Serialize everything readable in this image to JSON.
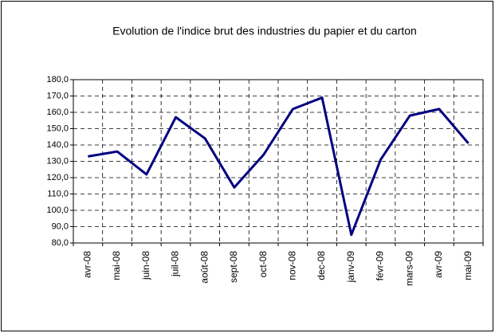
{
  "chart_data": {
    "type": "line",
    "title": "Evolution de l'indice brut des industries du papier et du carton",
    "categories": [
      "avr-08",
      "mai-08",
      "juin-08",
      "juil-08",
      "août-08",
      "sept-08",
      "oct-08",
      "nov-08",
      "dec-08",
      "janv-09",
      "févr-09",
      "mars-09",
      "avr-09",
      "mai-09"
    ],
    "series": [
      {
        "name": "Indice brut",
        "color": "#000080",
        "values": [
          133,
          136,
          122,
          157,
          144,
          114,
          134,
          162,
          169,
          85,
          131,
          158,
          162,
          141
        ]
      }
    ],
    "ylim": [
      80,
      180
    ],
    "yticks": [
      {
        "value": 80,
        "label": "80,0"
      },
      {
        "value": 90,
        "label": "90,0"
      },
      {
        "value": 100,
        "label": "100,0"
      },
      {
        "value": 110,
        "label": "110,0"
      },
      {
        "value": 120,
        "label": "120,0"
      },
      {
        "value": 130,
        "label": "130,0"
      },
      {
        "value": 140,
        "label": "140,0"
      },
      {
        "value": 150,
        "label": "150,0"
      },
      {
        "value": 160,
        "label": "160,0"
      },
      {
        "value": 170,
        "label": "170,0"
      },
      {
        "value": 180,
        "label": "180,0"
      }
    ],
    "grid": true
  }
}
